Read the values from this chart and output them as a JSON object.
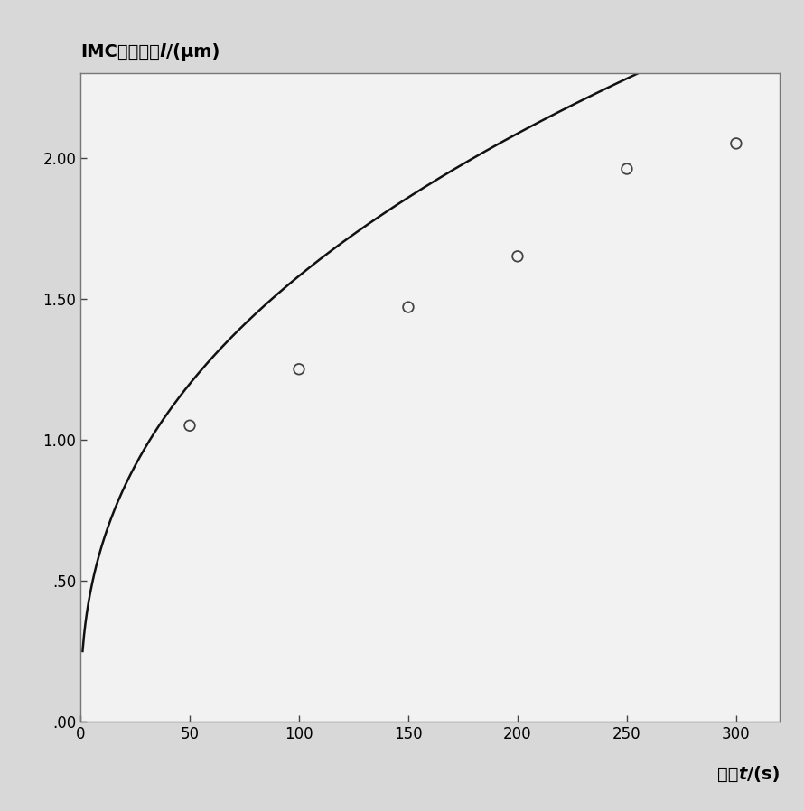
{
  "scatter_x": [
    50,
    100,
    150,
    200,
    250,
    300
  ],
  "scatter_y": [
    1.05,
    1.25,
    1.47,
    1.65,
    1.96,
    2.05
  ],
  "curve_coeff_a": 0.2505,
  "curve_power": 0.4,
  "xlim": [
    0,
    320
  ],
  "ylim": [
    0.0,
    2.3
  ],
  "xticks": [
    0,
    50,
    100,
    150,
    200,
    250,
    300
  ],
  "yticks": [
    0.0,
    0.5,
    1.0,
    1.5,
    2.0
  ],
  "ytick_labels": [
    ".00",
    ".50",
    "1.00",
    "1.50",
    "2.00"
  ],
  "xlabel_cn": "时间",
  "xlabel_bold": "t",
  "xlabel_unit": "/(s)",
  "ylabel_cn": "IMC平均厚度",
  "ylabel_italic": "l",
  "ylabel_unit": "/(μm)",
  "figure_bg": "#d8d8d8",
  "plot_bg": "#f2f2f2",
  "scatter_facecolor": "none",
  "scatter_edgecolor": "#444444",
  "scatter_size": 70,
  "scatter_linewidth": 1.3,
  "curve_color": "#111111",
  "curve_linewidth": 1.8,
  "spine_color": "#777777",
  "tick_color": "#444444",
  "label_fontsize": 14,
  "tick_fontsize": 12,
  "xlabel_fontsize": 14
}
